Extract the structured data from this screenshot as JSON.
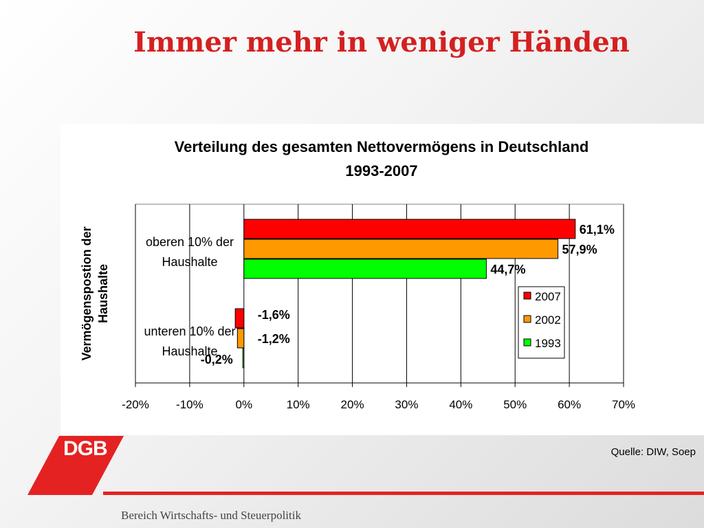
{
  "slide": {
    "title": "Immer mehr in weniger Händen",
    "source": "Quelle: DIW, Soep",
    "footer": "Bereich Wirtschafts- und Steuerpolitik",
    "logo_text": "DGB",
    "accent_color": "#e52222"
  },
  "chart_data": {
    "type": "bar",
    "orientation": "horizontal",
    "title": "Verteilung des gesamten Nettovermögens in Deutschland",
    "subtitle": "1993-2007",
    "ylabel": [
      "Vermögenspostion der",
      "Haushalte"
    ],
    "xlabel": "",
    "categories": [
      [
        "oberen 10% der",
        "Haushalte"
      ],
      [
        "unteren 10% der",
        "Haushalte"
      ]
    ],
    "xlim": [
      -20,
      70
    ],
    "xticks": [
      -20,
      -10,
      0,
      10,
      20,
      30,
      40,
      50,
      60,
      70
    ],
    "xtick_labels": [
      "-20%",
      "-10%",
      "0%",
      "10%",
      "20%",
      "30%",
      "40%",
      "50%",
      "60%",
      "70%"
    ],
    "grid": "vertical",
    "legend_position": "right",
    "series": [
      {
        "name": "2007",
        "color": "#ff0000",
        "values": [
          61.1,
          -1.6
        ],
        "labels": [
          "61,1%",
          "-1,6%"
        ]
      },
      {
        "name": "2002",
        "color": "#ff9900",
        "values": [
          57.9,
          -1.2
        ],
        "labels": [
          "57,9%",
          "-1,2%"
        ]
      },
      {
        "name": "1993",
        "color": "#00ff00",
        "values": [
          44.7,
          -0.2
        ],
        "labels": [
          "44,7%",
          "-0,2%"
        ]
      }
    ]
  }
}
